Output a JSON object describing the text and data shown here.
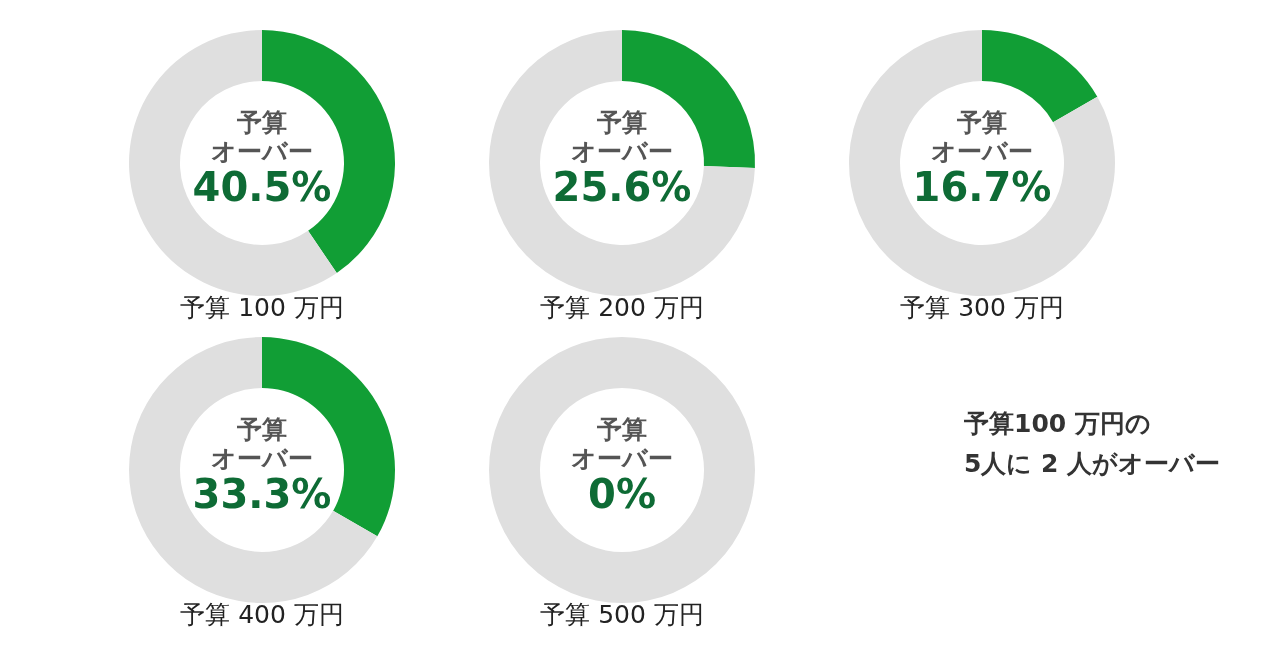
{
  "chart_data": [
    {
      "type": "donut",
      "title": "予算 100 万円",
      "categories": [
        "予算オーバー",
        null
      ],
      "values": [
        40.5,
        59.5
      ],
      "colors": [
        "#119e35",
        "#dfdfdf"
      ],
      "value_labels": [
        "40.5%",
        null
      ]
    },
    {
      "type": "donut",
      "title": "予算 200 万円",
      "categories": [
        "予算オーバー",
        null
      ],
      "values": [
        25.6,
        74.4
      ],
      "colors": [
        "#119e35",
        "#dfdfdf"
      ],
      "value_labels": [
        "25.6%",
        null
      ]
    },
    {
      "type": "donut",
      "title": "予算 300 万円",
      "categories": [
        "予算オーバー",
        null
      ],
      "values": [
        16.7,
        83.3
      ],
      "colors": [
        "#119e35",
        "#dfdfdf"
      ],
      "value_labels": [
        "16.7%",
        null
      ]
    },
    {
      "type": "donut",
      "title": "予算 400 万円",
      "categories": [
        "予算オーバー",
        null
      ],
      "values": [
        33.3,
        66.7
      ],
      "colors": [
        "#119e35",
        "#dfdfdf"
      ],
      "value_labels": [
        "33.3%",
        null
      ]
    },
    {
      "type": "donut",
      "title": "予算 500 万円",
      "categories": [
        "予算オーバー",
        null
      ],
      "values": [
        0,
        100
      ],
      "colors": [
        "#119e35",
        "#dfdfdf"
      ],
      "value_labels": [
        "0%",
        null
      ]
    },
    {
      "type": "other",
      "annotations": [
        "予算100 万円の",
        "5人に 2 人がオーバー"
      ]
    }
  ]
}
